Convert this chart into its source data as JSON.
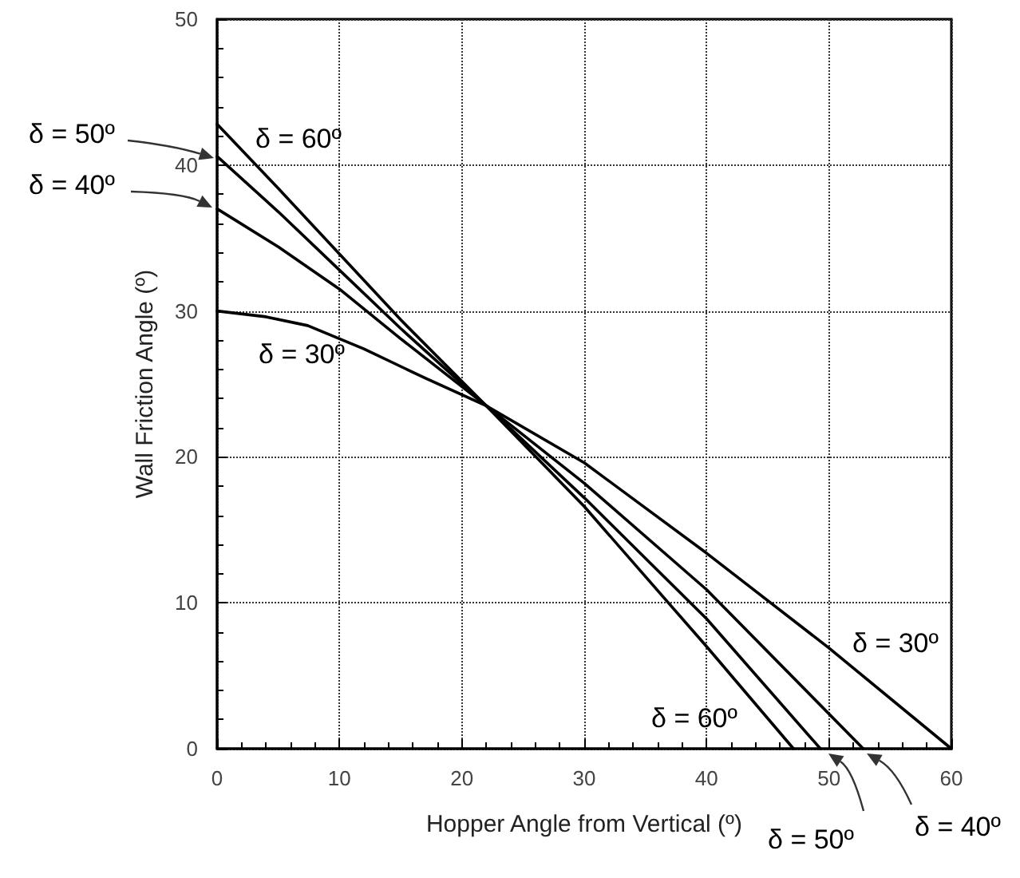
{
  "chart_data": {
    "type": "line",
    "xlabel": "Hopper Angle from Vertical (º)",
    "ylabel": "Wall Friction Angle (º)",
    "xlim": [
      0,
      60
    ],
    "ylim": [
      0,
      50
    ],
    "xticks": [
      0,
      10,
      20,
      30,
      40,
      50,
      60
    ],
    "yticks": [
      0,
      10,
      20,
      30,
      40,
      50
    ],
    "grid": true,
    "marker": "none",
    "line_style": "solid",
    "series": [
      {
        "color": "#000000",
        "x": [
          0,
          4,
          7.4,
          12,
          17,
          22,
          30,
          40,
          50,
          60
        ],
        "values": [
          30,
          29.6,
          29,
          27.4,
          25.4,
          23.5,
          19.6,
          13.4,
          6.9,
          0
        ]
      },
      {
        "color": "#000000",
        "x": [
          0,
          5,
          10,
          15,
          22,
          30,
          40,
          52.8
        ],
        "values": [
          37,
          34.4,
          31.5,
          28.1,
          23.5,
          18.2,
          10.9,
          0
        ]
      },
      {
        "color": "#000000",
        "x": [
          0,
          5,
          10,
          15,
          22,
          30,
          40,
          49.3
        ],
        "values": [
          40.6,
          36.8,
          32.8,
          28.8,
          23.5,
          17.2,
          8.9,
          0
        ]
      },
      {
        "color": "#000000",
        "x": [
          0,
          5,
          10,
          15,
          22,
          30,
          40,
          47.1
        ],
        "values": [
          42.8,
          38.4,
          33.9,
          29.4,
          23.5,
          16.6,
          7.0,
          0
        ]
      }
    ],
    "annotations": [
      "δ = 50º",
      "δ = 40º",
      "δ = 60º",
      "δ = 30º",
      "δ = 30º",
      "δ = 60º",
      "δ = 50º",
      "δ = 40º"
    ]
  }
}
